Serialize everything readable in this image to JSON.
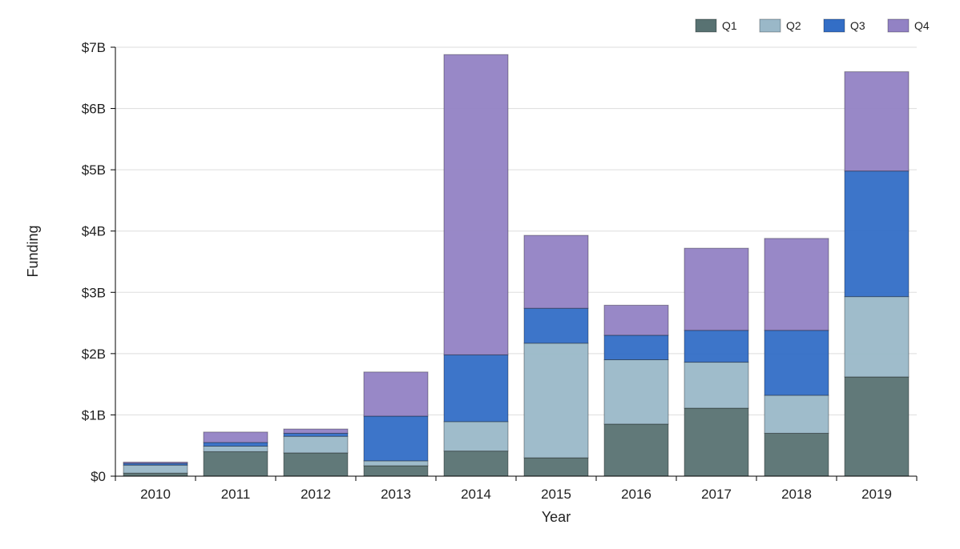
{
  "chart_data": {
    "type": "bar",
    "stacked": true,
    "title": "",
    "xlabel": "Year",
    "ylabel": "Funding",
    "ylim": [
      0,
      7
    ],
    "y_unit": "billions USD",
    "yticks": [
      0,
      1,
      2,
      3,
      4,
      5,
      6,
      7
    ],
    "ytick_labels": [
      "$0",
      "$1B",
      "$2B",
      "$3B",
      "$4B",
      "$5B",
      "$6B",
      "$7B"
    ],
    "grid": true,
    "legend_position": "top-right",
    "categories": [
      "2010",
      "2011",
      "2012",
      "2013",
      "2014",
      "2015",
      "2016",
      "2017",
      "2018",
      "2019"
    ],
    "series": [
      {
        "name": "Q1",
        "color": "#587272",
        "values": [
          0.05,
          0.4,
          0.38,
          0.17,
          0.41,
          0.3,
          0.85,
          1.11,
          0.7,
          1.62
        ]
      },
      {
        "name": "Q2",
        "color": "#9ab8c8",
        "values": [
          0.13,
          0.09,
          0.27,
          0.08,
          0.48,
          1.87,
          1.05,
          0.75,
          0.62,
          1.31
        ]
      },
      {
        "name": "Q3",
        "color": "#336ec6",
        "values": [
          0.03,
          0.06,
          0.05,
          0.73,
          1.09,
          0.57,
          0.4,
          0.52,
          1.06,
          2.05
        ]
      },
      {
        "name": "Q4",
        "color": "#9282c4",
        "values": [
          0.02,
          0.17,
          0.07,
          0.72,
          4.9,
          1.19,
          0.49,
          1.34,
          1.5,
          1.62
        ]
      }
    ]
  }
}
